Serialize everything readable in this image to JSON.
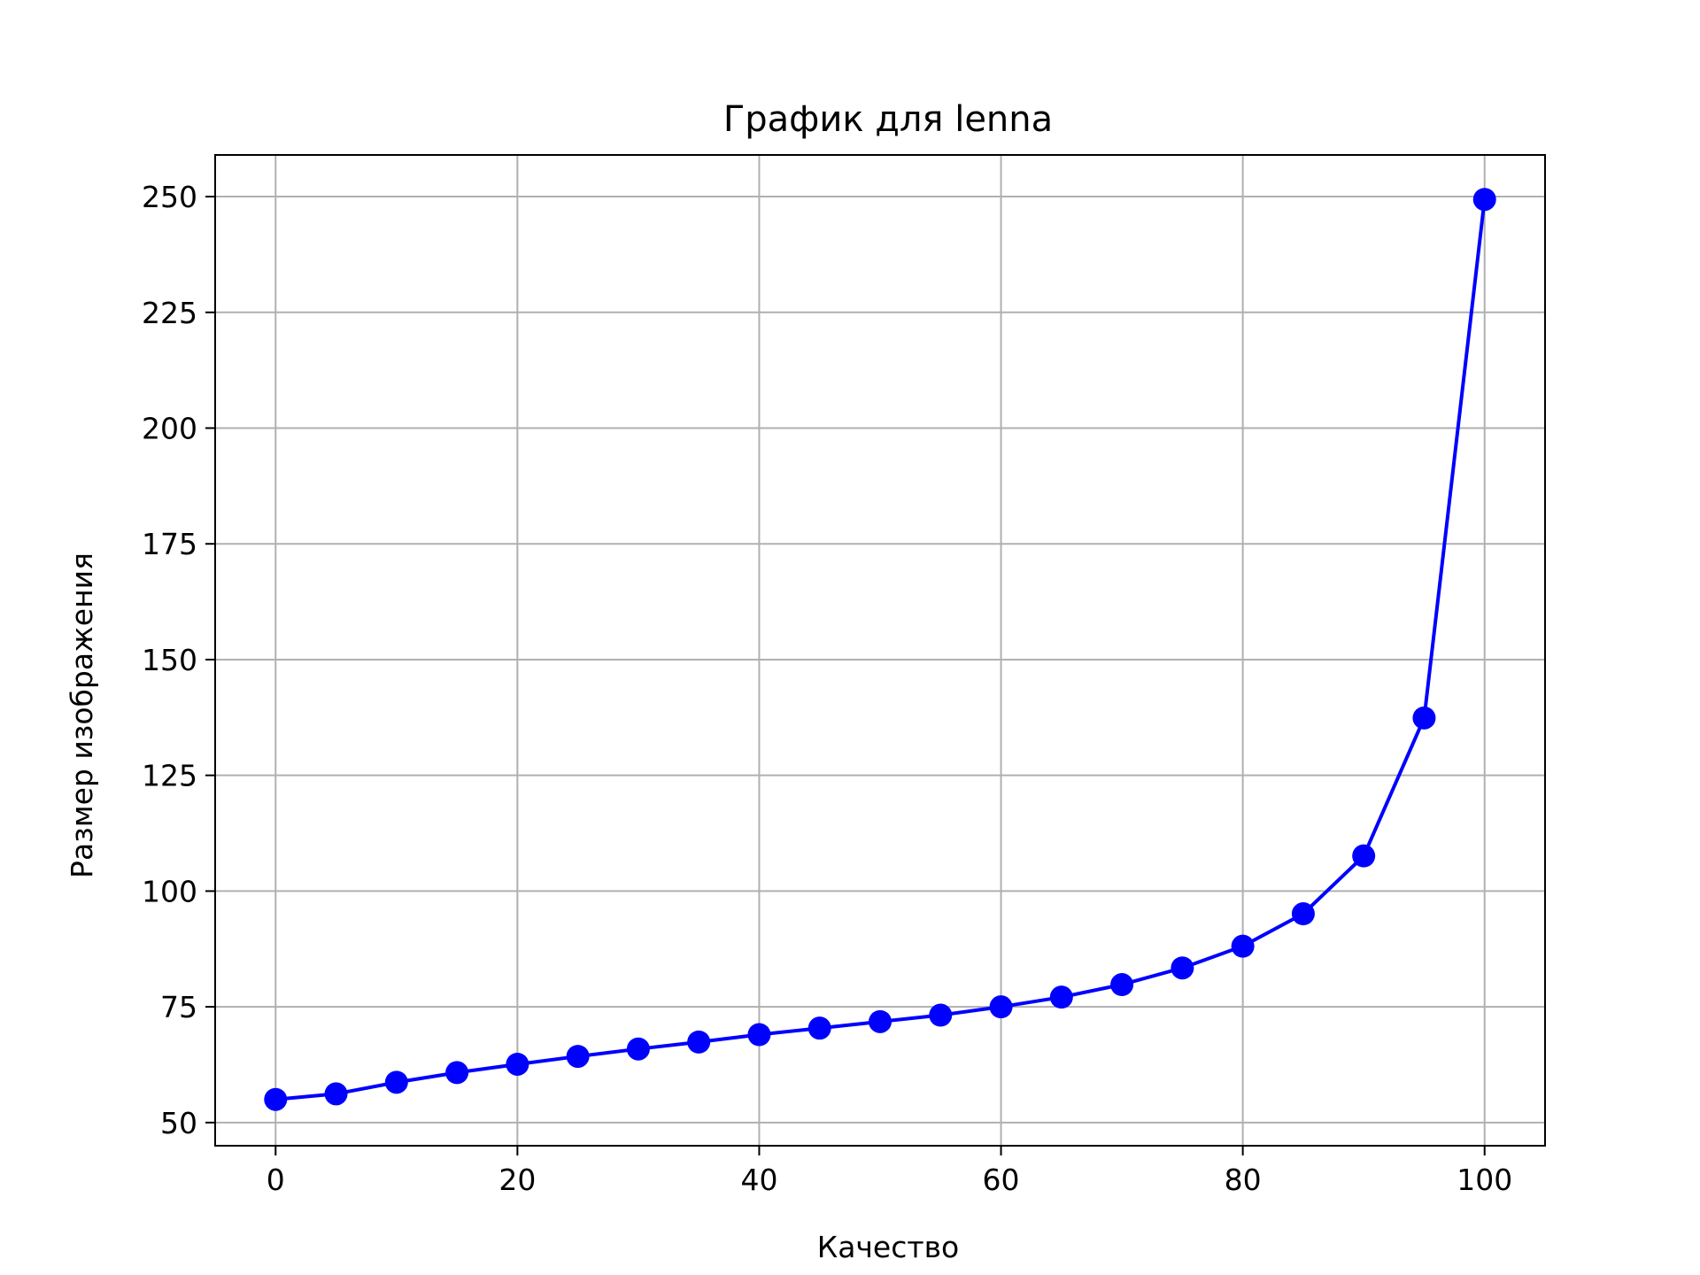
{
  "chart_data": {
    "type": "line",
    "title": "График для lenna",
    "xlabel": "Качество",
    "ylabel": "Размер изображения",
    "xlim": [
      -5,
      105
    ],
    "ylim": [
      45,
      259
    ],
    "xticks": [
      0,
      20,
      40,
      60,
      80,
      100
    ],
    "yticks": [
      50,
      75,
      100,
      125,
      150,
      175,
      200,
      225,
      250
    ],
    "grid": true,
    "series": [
      {
        "color": "#0000ff",
        "marker": "circle",
        "x": [
          0,
          5,
          10,
          15,
          20,
          25,
          30,
          35,
          40,
          45,
          50,
          55,
          60,
          65,
          70,
          75,
          80,
          85,
          90,
          95,
          100
        ],
        "y": [
          55,
          56.2,
          58.7,
          60.8,
          62.6,
          64.3,
          65.9,
          67.4,
          69.0,
          70.4,
          71.8,
          73.2,
          75.0,
          77.1,
          79.8,
          83.4,
          88.1,
          95.1,
          107.6,
          137.4,
          249.4
        ]
      }
    ],
    "colors": {
      "grid": "#b0b0b0",
      "axes": "#000000",
      "line": "#0000ff"
    }
  }
}
